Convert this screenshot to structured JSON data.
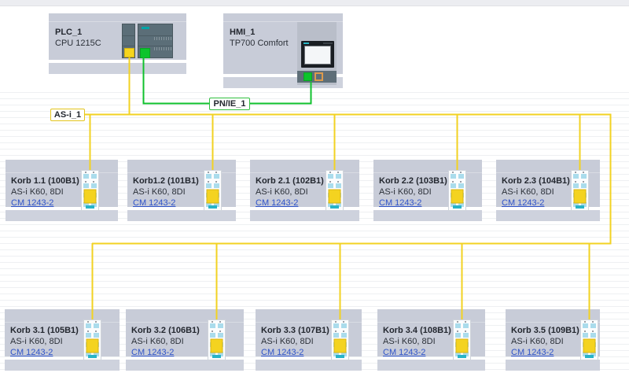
{
  "plc": {
    "name": "PLC_1",
    "model": "CPU 1215C"
  },
  "hmi": {
    "name": "HMI_1",
    "model": "TP700 Comfort"
  },
  "networks": {
    "asi": {
      "label": "AS-i_1",
      "color": "#f2d222"
    },
    "pnie": {
      "label": "PN/IE_1",
      "color": "#10c12d"
    }
  },
  "link_color": "#2f53c8",
  "slaves": [
    {
      "title": "Korb 1.1 (100B1)",
      "subtitle": "AS-i K60, 8DI",
      "link": "CM 1243-2"
    },
    {
      "title": "Korb1.2 (101B1)",
      "subtitle": "AS-i K60, 8DI",
      "link": "CM 1243-2"
    },
    {
      "title": "Korb 2.1 (102B1)",
      "subtitle": "AS-i K60, 8DI",
      "link": "CM 1243-2"
    },
    {
      "title": "Korb 2.2 (103B1)",
      "subtitle": "AS-i K60, 8DI",
      "link": "CM 1243-2"
    },
    {
      "title": "Korb 2.3 (104B1)",
      "subtitle": "AS-i K60, 8DI",
      "link": "CM 1243-2"
    },
    {
      "title": "Korb 3.1 (105B1)",
      "subtitle": "AS-i K60, 8DI",
      "link": "CM 1243-2"
    },
    {
      "title": "Korb 3.2 (106B1)",
      "subtitle": "AS-i K60, 8DI",
      "link": "CM 1243-2"
    },
    {
      "title": "Korb 3.3 (107B1)",
      "subtitle": "AS-i K60, 8DI",
      "link": "CM 1243-2"
    },
    {
      "title": "Korb 3.4 (108B1)",
      "subtitle": "AS-i K60, 8DI",
      "link": "CM 1243-2"
    },
    {
      "title": "Korb 3.5 (109B1)",
      "subtitle": "AS-i K60, 8DI",
      "link": "CM 1243-2"
    }
  ]
}
